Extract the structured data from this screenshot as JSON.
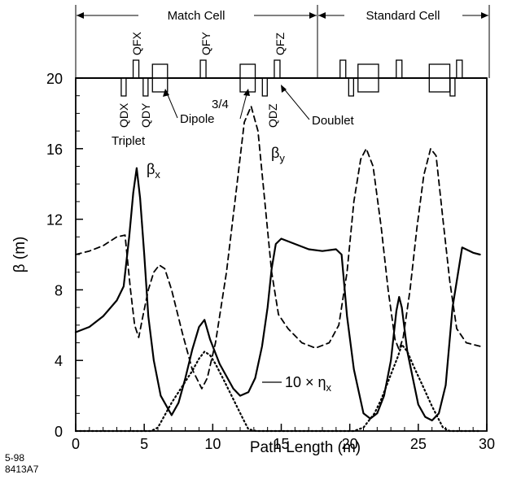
{
  "chart_data": {
    "type": "line",
    "xlabel": "Path Length  (m)",
    "ylabel": "β  (m)",
    "xlim": [
      0,
      30
    ],
    "ylim": [
      0,
      20
    ],
    "x_ticks": [
      "0",
      "5",
      "10",
      "15",
      "20",
      "25",
      "30"
    ],
    "y_ticks": [
      "0",
      "4",
      "8",
      "12",
      "16",
      "20"
    ],
    "grid": false,
    "corner_text": [
      "5-98",
      "8413A7"
    ],
    "cells": [
      {
        "label": "Match Cell",
        "x_start": 0,
        "x_end": 17.2
      },
      {
        "label": "Standard Cell",
        "x_start": 17.2,
        "x_end": 29.5
      }
    ],
    "magnet_labels": {
      "upper": [
        "QFX",
        "QFY",
        "QFZ"
      ],
      "lower": [
        "QDX",
        "QDY",
        "QDZ"
      ]
    },
    "annotations": {
      "triplet": "Triplet",
      "dipole_line1": "3/4",
      "dipole_line2": "Dipole",
      "doublet": "Doublet",
      "eta_label": "10 × η"
    },
    "lattice": {
      "upper_quads": [
        4.4,
        9.3,
        14.7,
        19.5,
        23.6,
        28.0
      ],
      "lower_quads": [
        3.5,
        5.1,
        13.8,
        20.1,
        27.5
      ],
      "dipoles": [
        [
          5.6,
          6.7
        ],
        [
          12.0,
          13.1
        ],
        [
          20.6,
          22.1
        ],
        [
          25.8,
          27.3
        ]
      ]
    },
    "series": [
      {
        "name": "βx",
        "label_base": "β",
        "label_sub": "x",
        "style": "solid",
        "x": [
          0,
          1,
          2,
          3,
          3.5,
          3.9,
          4.2,
          4.45,
          4.7,
          5,
          5.3,
          5.7,
          6.2,
          7,
          7.5,
          8,
          8.5,
          9,
          9.4,
          9.8,
          10.5,
          11.5,
          12,
          12.6,
          13.1,
          13.6,
          14,
          14.3,
          14.6,
          15,
          16,
          17,
          18,
          19,
          19.4,
          19.8,
          20.3,
          21,
          21.5,
          22,
          22.5,
          23,
          23.4,
          23.6,
          23.8,
          24.2,
          25,
          25.5,
          26,
          26.5,
          27,
          27.5,
          28.2,
          29,
          29.5
        ],
        "y": [
          5.6,
          5.9,
          6.5,
          7.4,
          8.2,
          11.0,
          13.5,
          14.9,
          13.2,
          10.0,
          6.5,
          4.0,
          2.0,
          0.9,
          1.6,
          3.0,
          4.6,
          5.9,
          6.3,
          5.2,
          3.8,
          2.4,
          2.0,
          2.2,
          3.0,
          4.8,
          7.0,
          9.2,
          10.6,
          10.9,
          10.6,
          10.3,
          10.2,
          10.3,
          10.0,
          6.5,
          3.5,
          1.0,
          0.7,
          1.0,
          2.0,
          4.0,
          6.8,
          7.6,
          7.0,
          4.5,
          1.5,
          0.8,
          0.6,
          1.0,
          2.6,
          7.0,
          10.4,
          10.1,
          10.0
        ]
      },
      {
        "name": "βy",
        "label_base": "β",
        "label_sub": "y",
        "style": "dashed",
        "x": [
          0,
          1,
          2,
          3,
          3.6,
          4,
          4.3,
          4.6,
          4.9,
          5.3,
          5.7,
          6.1,
          6.5,
          7,
          7.8,
          8.5,
          9.2,
          9.6,
          10.2,
          11,
          11.7,
          12.3,
          12.8,
          13.3,
          13.8,
          14.3,
          14.8,
          15.5,
          16.5,
          17.5,
          18.5,
          19.2,
          19.8,
          20.3,
          20.8,
          21.2,
          21.7,
          22.3,
          22.8,
          23.3,
          23.6,
          23.9,
          24.4,
          24.9,
          25.4,
          25.9,
          26.3,
          26.8,
          27.3,
          27.8,
          28.5,
          29.5
        ],
        "y": [
          10.0,
          10.2,
          10.5,
          11.0,
          11.1,
          8.0,
          6.0,
          5.3,
          6.5,
          8.0,
          9.0,
          9.4,
          9.2,
          8.0,
          5.5,
          3.5,
          2.4,
          3.0,
          5.0,
          9.0,
          13.5,
          17.5,
          18.4,
          17.0,
          13.0,
          9.0,
          6.6,
          5.8,
          5.0,
          4.7,
          5.0,
          6.0,
          9.0,
          13.0,
          15.4,
          16.0,
          15.0,
          11.5,
          8.0,
          5.2,
          4.6,
          5.3,
          8.0,
          11.5,
          14.5,
          16.0,
          15.6,
          12.0,
          8.5,
          5.8,
          5.0,
          4.8
        ]
      },
      {
        "name": "10 × ηx",
        "label_base": "10 × η",
        "label_sub": "x",
        "style": "dotted",
        "x": [
          0,
          5.5,
          6,
          7,
          8,
          8.5,
          9,
          9.4,
          9.8,
          10.2,
          10.8,
          11.5,
          12.2,
          12.6,
          13.2,
          17,
          19.5,
          20.3,
          21,
          21.8,
          22.3,
          22.8,
          23.2,
          23.5,
          23.8,
          24.2,
          24.7,
          25.3,
          26,
          26.8,
          27.3,
          29.5
        ],
        "y": [
          0,
          0,
          0.2,
          1.6,
          2.8,
          3.4,
          4.1,
          4.5,
          4.3,
          3.8,
          2.9,
          1.8,
          0.7,
          0.1,
          0,
          0,
          0,
          0,
          0.2,
          1.0,
          1.8,
          2.8,
          3.6,
          4.2,
          4.9,
          4.5,
          3.6,
          2.6,
          1.4,
          0.2,
          0,
          0
        ]
      }
    ]
  }
}
